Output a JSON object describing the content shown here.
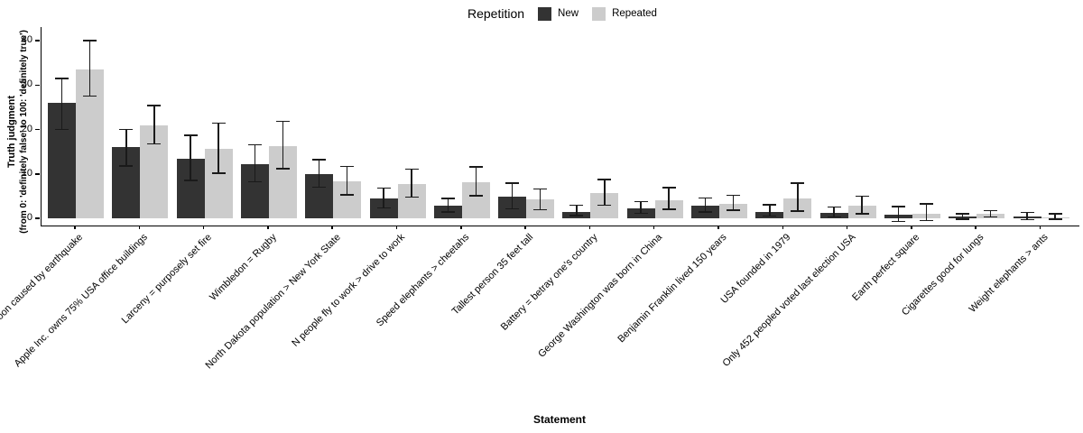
{
  "figure": {
    "legend": {
      "title": "Repetition",
      "items": [
        {
          "label": "New",
          "color": "#333333"
        },
        {
          "label": "Repeated",
          "color": "#cccccc"
        }
      ]
    },
    "y_axis": {
      "title_line1": "Truth judgment",
      "title_line2": "(from 0: 'definitely false' to 100: 'definitely true')"
    },
    "x_axis": {
      "title": "Statement"
    }
  },
  "chart_data": {
    "type": "bar",
    "title": "",
    "legend_title": "Repetition",
    "legend_position": "top",
    "xlabel": "Statement",
    "ylabel": "Truth judgment (from 0: 'definitely false' to 100: 'definitely true')",
    "ylim": [
      0,
      40
    ],
    "yticks": [
      0,
      10,
      20,
      30,
      40
    ],
    "grid": false,
    "error_bars": true,
    "categories": [
      "Monsoon caused by earthquake",
      "Apple Inc. owns 75% USA office buildings",
      "Larceny = purposely set fire",
      "Wimbledon = Rugby",
      "North Dakota population > New York State",
      "N people fly to work > drive to work",
      "Speed elephants > cheetahs",
      "Tallest person 35 feet tall",
      "Battery = betray one's country",
      "George Washington was born in China",
      "Benjamin Franklin lived 150 years",
      "USA founded in 1979",
      "Only 452 peopled voted last election USA",
      "Earth perfect square",
      "Cigarettes good for lungs",
      "Weight elephants > ants"
    ],
    "series": [
      {
        "name": "New",
        "color": "#333333",
        "values": [
          26,
          16,
          13.5,
          12.2,
          10,
          4.5,
          2.9,
          4.9,
          1.4,
          2.3,
          2.9,
          1.5,
          1.3,
          0.8,
          0.4,
          0.4
        ],
        "error_low": [
          20,
          11.8,
          8.5,
          8.2,
          7,
          2.3,
          1.4,
          2.1,
          0.6,
          1.1,
          1.4,
          0.5,
          0.3,
          -0.7,
          -0.2,
          -0.3
        ],
        "error_high": [
          31.5,
          20,
          18.7,
          16.5,
          13.2,
          6.8,
          4.5,
          7.9,
          2.9,
          3.8,
          4.6,
          3.0,
          2.5,
          2.6,
          1.0,
          1.3
        ]
      },
      {
        "name": "Repeated",
        "color": "#cccccc",
        "values": [
          33.5,
          21,
          15.6,
          16.3,
          8.4,
          7.8,
          8.2,
          4.3,
          5.6,
          4.1,
          3.3,
          4.4,
          2.8,
          1.1,
          1.0,
          0.2
        ],
        "error_low": [
          27.5,
          16.8,
          10.2,
          11.2,
          5.3,
          4.8,
          5.1,
          1.9,
          2.9,
          2.0,
          1.8,
          1.6,
          1.0,
          -0.5,
          0.3,
          -0.2
        ],
        "error_high": [
          40,
          25.4,
          21.4,
          21.8,
          11.7,
          11.1,
          11.6,
          6.6,
          8.7,
          6.9,
          5.2,
          7.9,
          5.0,
          3.2,
          1.7,
          1.0
        ]
      }
    ]
  }
}
